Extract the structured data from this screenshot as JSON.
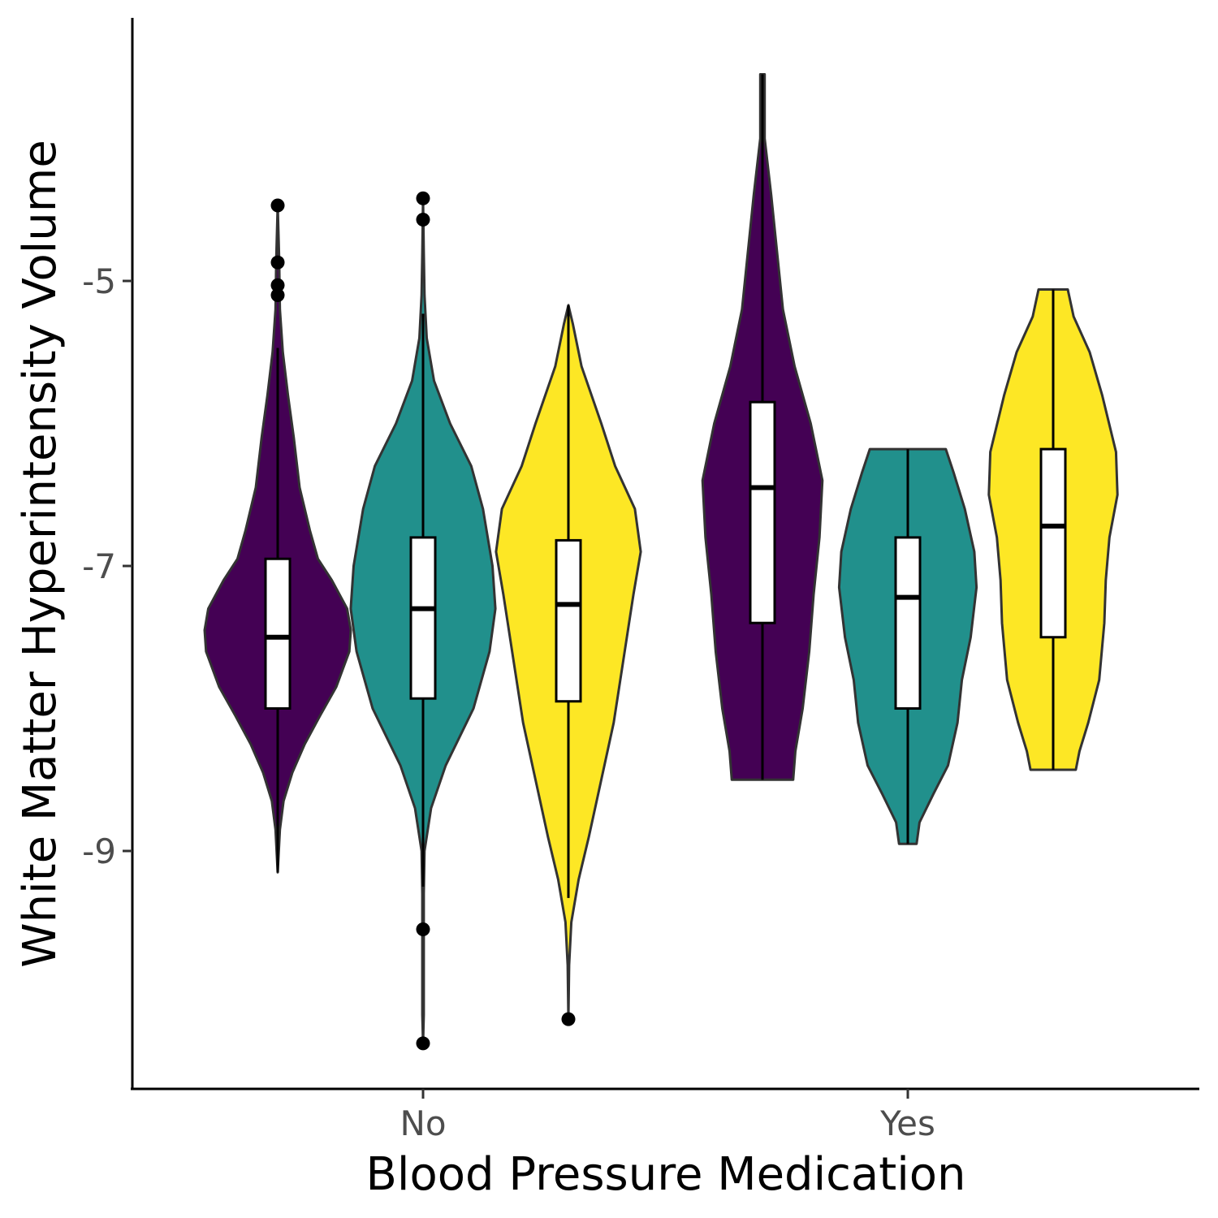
{
  "chart_data": {
    "type": "violin",
    "xlabel": "Blood Pressure Medication",
    "ylabel": "White Matter Hyperintensity Volume",
    "categories": [
      "No",
      "Yes"
    ],
    "y_ticks": [
      "-5",
      "-7",
      "-9"
    ],
    "y_tick_values": [
      -5,
      -7,
      -9
    ],
    "ylim": [
      -10.7,
      -3.2
    ],
    "grid": false,
    "legend": "none",
    "series_colors": [
      "#440154",
      "#21908C",
      "#FDE725"
    ],
    "groups": [
      {
        "category": "No",
        "series_index": 0,
        "box": {
          "q1": -8.0,
          "median": -7.5,
          "q3": -6.95,
          "whisker_low": -9.15,
          "whisker_high": -5.47
        },
        "outliers": [
          -4.47,
          -4.87,
          -5.03,
          -5.1
        ],
        "density": [
          [
            -9.15,
            0.0
          ],
          [
            -9.05,
            0.01
          ],
          [
            -8.85,
            0.03
          ],
          [
            -8.65,
            0.08
          ],
          [
            -8.45,
            0.2
          ],
          [
            -8.25,
            0.37
          ],
          [
            -8.05,
            0.58
          ],
          [
            -7.85,
            0.8
          ],
          [
            -7.6,
            0.98
          ],
          [
            -7.45,
            1.0
          ],
          [
            -7.3,
            0.95
          ],
          [
            -7.1,
            0.74
          ],
          [
            -6.95,
            0.55
          ],
          [
            -6.75,
            0.44
          ],
          [
            -6.45,
            0.3
          ],
          [
            -6.1,
            0.22
          ],
          [
            -5.8,
            0.14
          ],
          [
            -5.5,
            0.07
          ],
          [
            -5.2,
            0.03
          ],
          [
            -4.85,
            0.02
          ],
          [
            -4.47,
            0.0
          ]
        ]
      },
      {
        "category": "No",
        "series_index": 1,
        "box": {
          "q1": -7.93,
          "median": -7.3,
          "q3": -6.8,
          "whisker_low": -9.25,
          "whisker_high": -5.23
        },
        "outliers": [
          -4.42,
          -4.57,
          -9.55,
          -10.35
        ],
        "density": [
          [
            -10.35,
            0.0
          ],
          [
            -10.15,
            0.01
          ],
          [
            -9.6,
            0.01
          ],
          [
            -9.3,
            0.01
          ],
          [
            -9.0,
            0.02
          ],
          [
            -8.7,
            0.11
          ],
          [
            -8.4,
            0.31
          ],
          [
            -8.0,
            0.69
          ],
          [
            -7.6,
            0.91
          ],
          [
            -7.3,
            0.99
          ],
          [
            -7.0,
            0.95
          ],
          [
            -6.6,
            0.82
          ],
          [
            -6.3,
            0.66
          ],
          [
            -6.0,
            0.37
          ],
          [
            -5.7,
            0.15
          ],
          [
            -5.4,
            0.05
          ],
          [
            -5.1,
            0.02
          ],
          [
            -4.8,
            0.01
          ],
          [
            -4.42,
            0.0
          ]
        ]
      },
      {
        "category": "No",
        "series_index": 2,
        "box": {
          "q1": -7.95,
          "median": -7.27,
          "q3": -6.82,
          "whisker_low": -9.33,
          "whisker_high": -5.17
        },
        "outliers": [
          -10.18
        ],
        "density": [
          [
            -10.18,
            0.0
          ],
          [
            -9.8,
            0.01
          ],
          [
            -9.5,
            0.04
          ],
          [
            -9.2,
            0.14
          ],
          [
            -8.9,
            0.28
          ],
          [
            -8.5,
            0.45
          ],
          [
            -8.1,
            0.62
          ],
          [
            -7.7,
            0.74
          ],
          [
            -7.2,
            0.89
          ],
          [
            -6.9,
            0.99
          ],
          [
            -6.6,
            0.91
          ],
          [
            -6.3,
            0.64
          ],
          [
            -6.0,
            0.45
          ],
          [
            -5.6,
            0.18
          ],
          [
            -5.3,
            0.06
          ],
          [
            -5.17,
            0.0
          ]
        ]
      },
      {
        "category": "Yes",
        "series_index": 0,
        "box": {
          "q1": -7.4,
          "median": -6.45,
          "q3": -5.85,
          "whisker_low": -8.5,
          "whisker_high": -3.55
        },
        "outliers": [],
        "density": [
          [
            -8.5,
            0.42
          ],
          [
            -8.3,
            0.45
          ],
          [
            -8.0,
            0.55
          ],
          [
            -7.6,
            0.64
          ],
          [
            -7.2,
            0.7
          ],
          [
            -6.8,
            0.78
          ],
          [
            -6.4,
            0.82
          ],
          [
            -6.0,
            0.66
          ],
          [
            -5.6,
            0.44
          ],
          [
            -5.2,
            0.28
          ],
          [
            -4.8,
            0.2
          ],
          [
            -4.4,
            0.12
          ],
          [
            -4.0,
            0.03
          ],
          [
            -3.7,
            0.03
          ],
          [
            -3.55,
            0.03
          ]
        ]
      },
      {
        "category": "Yes",
        "series_index": 1,
        "box": {
          "q1": -8.0,
          "median": -7.22,
          "q3": -6.8,
          "whisker_low": -8.95,
          "whisker_high": -6.18
        },
        "outliers": [],
        "density": [
          [
            -8.95,
            0.12
          ],
          [
            -8.8,
            0.16
          ],
          [
            -8.6,
            0.35
          ],
          [
            -8.4,
            0.55
          ],
          [
            -8.1,
            0.68
          ],
          [
            -7.8,
            0.74
          ],
          [
            -7.5,
            0.86
          ],
          [
            -7.15,
            0.94
          ],
          [
            -6.9,
            0.91
          ],
          [
            -6.6,
            0.78
          ],
          [
            -6.35,
            0.63
          ],
          [
            -6.18,
            0.52
          ]
        ]
      },
      {
        "category": "Yes",
        "series_index": 2,
        "box": {
          "q1": -7.5,
          "median": -6.72,
          "q3": -6.18,
          "whisker_low": -8.43,
          "whisker_high": -5.06
        },
        "outliers": [],
        "density": [
          [
            -8.43,
            0.31
          ],
          [
            -8.3,
            0.36
          ],
          [
            -8.1,
            0.48
          ],
          [
            -7.8,
            0.63
          ],
          [
            -7.4,
            0.7
          ],
          [
            -7.1,
            0.72
          ],
          [
            -6.8,
            0.77
          ],
          [
            -6.5,
            0.88
          ],
          [
            -6.2,
            0.86
          ],
          [
            -5.8,
            0.67
          ],
          [
            -5.5,
            0.5
          ],
          [
            -5.25,
            0.28
          ],
          [
            -5.06,
            0.2
          ]
        ]
      }
    ]
  }
}
